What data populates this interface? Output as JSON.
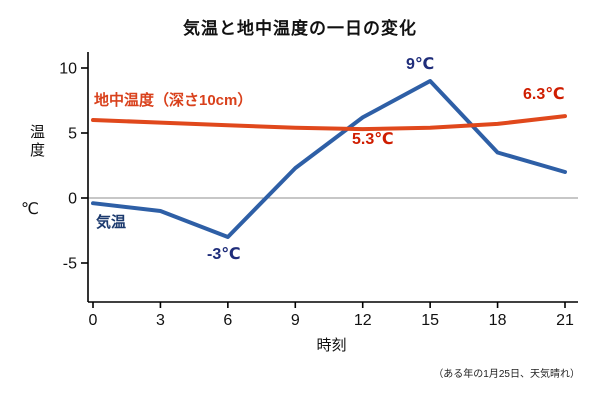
{
  "chart_data": {
    "type": "line",
    "title": "気温と地中温度の一日の変化",
    "xlabel": "時刻",
    "ylabel": "温度",
    "ylabel_unit": "℃",
    "x": [
      0,
      3,
      6,
      9,
      12,
      15,
      18,
      21
    ],
    "x_ticks": [
      "0",
      "3",
      "6",
      "9",
      "12",
      "15",
      "18",
      "21"
    ],
    "y_tick_values": [
      10,
      5,
      0,
      -5
    ],
    "y_ticks": [
      "10",
      "5",
      "0",
      "-5"
    ],
    "ylim": [
      -6.5,
      11.2
    ],
    "grid": "zero-line-only",
    "legend_position": "inline-labels",
    "series": [
      {
        "name": "気温",
        "color": "#2e5fa6",
        "values": [
          -0.4,
          -1,
          -3,
          2.3,
          6.2,
          9,
          3.5,
          2
        ]
      },
      {
        "name": "地中温度（深さ10cm）",
        "color": "#e0481c",
        "values": [
          6,
          5.8,
          5.6,
          5.4,
          5.3,
          5.4,
          5.7,
          6.3
        ]
      }
    ],
    "annotations": {
      "ground_label": "地中温度（深さ10cm）",
      "air_label": "気温",
      "peak": "9℃",
      "trough": "-3℃",
      "ground_min": "5.3℃",
      "ground_end": "6.3℃"
    },
    "footnote": "（ある年の1月25日、天気晴れ）"
  }
}
